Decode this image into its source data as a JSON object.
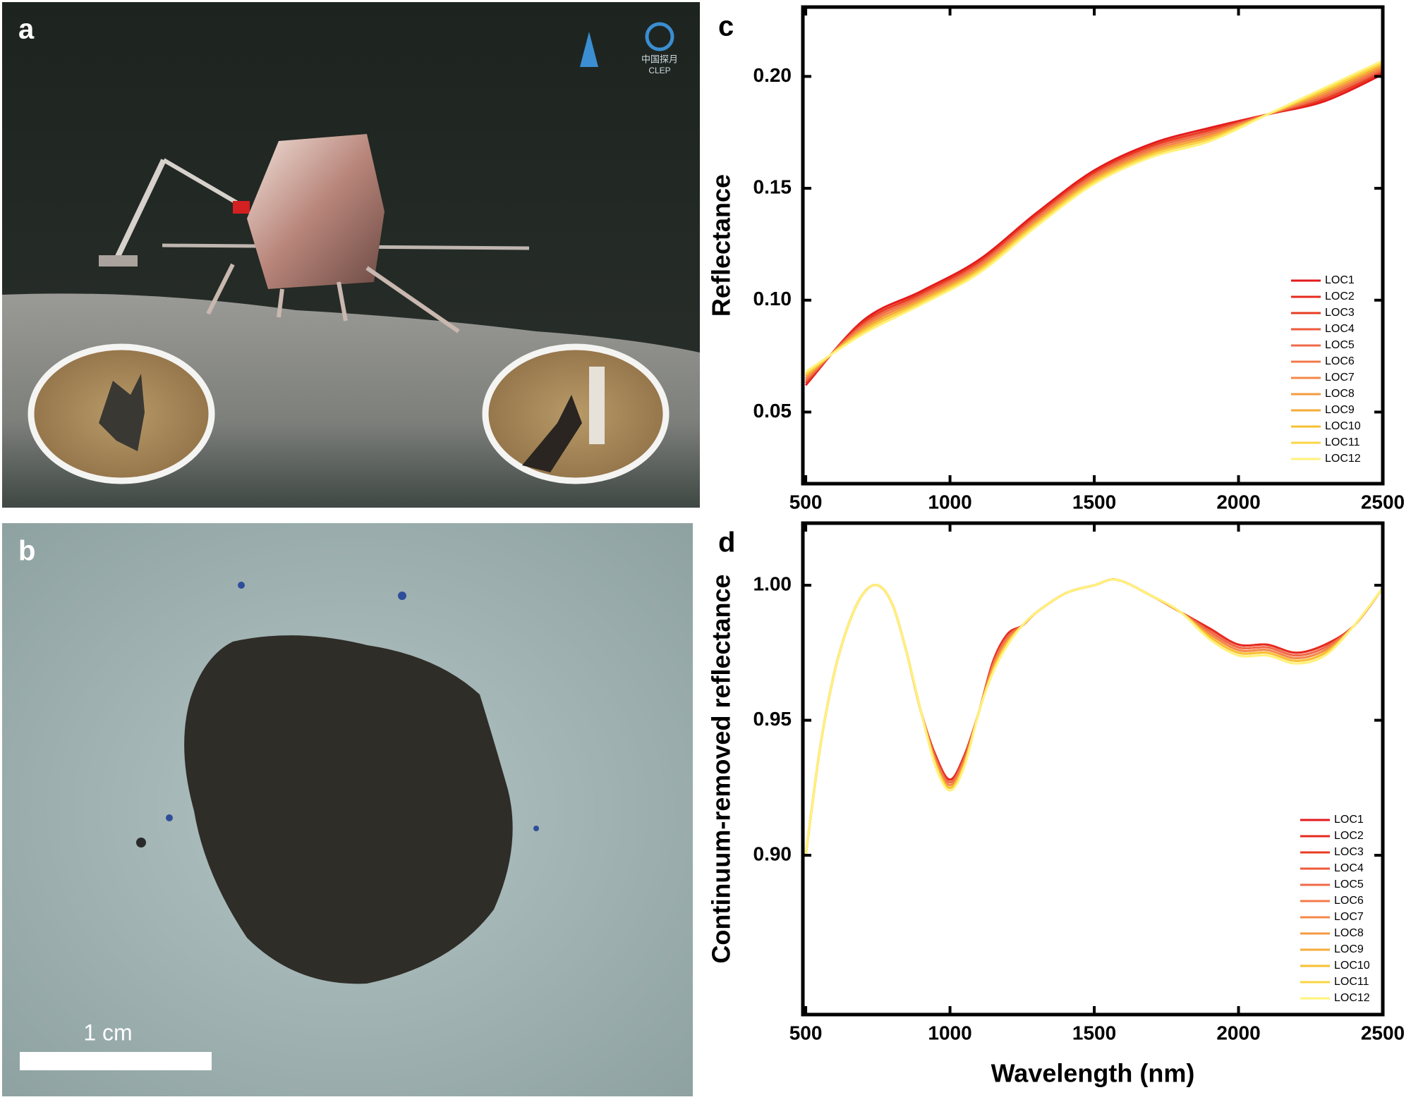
{
  "panel_labels": {
    "a": "a",
    "b": "b"
  },
  "photo_a": {
    "logo_text": [
      "中国探月",
      "CLEP"
    ]
  },
  "photo_b": {
    "scale_bar": "1 cm"
  },
  "chart_data": [
    {
      "type": "line",
      "panel_label": "c",
      "ylabel": "Reflectance",
      "x": [
        500,
        700,
        900,
        1100,
        1300,
        1500,
        1700,
        1900,
        2100,
        2300,
        2500
      ],
      "xlim": [
        490,
        2500
      ],
      "xticks": [
        500,
        1000,
        1500,
        2000,
        2500
      ],
      "ylim": [
        0.018,
        0.231
      ],
      "yticks": [
        0.05,
        {
          "value": 0.1,
          "label": "0.10"
        },
        0.15,
        {
          "value": 0.2,
          "label": "0.20"
        }
      ],
      "legend": "lower right",
      "series": [
        {
          "name": "LOC1",
          "color": "#e31a1c",
          "values": [
            0.062,
            0.091,
            0.104,
            0.118,
            0.139,
            0.158,
            0.17,
            0.177,
            0.183,
            0.189,
            0.201
          ]
        },
        {
          "name": "LOC2",
          "color": "#e62a1e",
          "values": [
            0.063,
            0.09,
            0.103,
            0.117,
            0.138,
            0.157,
            0.169,
            0.176,
            0.183,
            0.19,
            0.202
          ]
        },
        {
          "name": "LOC3",
          "color": "#ea3b22",
          "values": [
            0.063,
            0.09,
            0.103,
            0.117,
            0.138,
            0.157,
            0.169,
            0.176,
            0.183,
            0.19,
            0.202
          ]
        },
        {
          "name": "LOC4",
          "color": "#ee5a3a",
          "values": [
            0.064,
            0.089,
            0.102,
            0.116,
            0.137,
            0.156,
            0.168,
            0.175,
            0.183,
            0.191,
            0.203
          ]
        },
        {
          "name": "LOC5",
          "color": "#f06a48",
          "values": [
            0.064,
            0.089,
            0.102,
            0.116,
            0.137,
            0.156,
            0.168,
            0.175,
            0.183,
            0.191,
            0.203
          ]
        },
        {
          "name": "LOC6",
          "color": "#f27a4a",
          "values": [
            0.065,
            0.088,
            0.101,
            0.115,
            0.136,
            0.155,
            0.167,
            0.174,
            0.183,
            0.192,
            0.204
          ]
        },
        {
          "name": "LOC7",
          "color": "#f4874a",
          "values": [
            0.065,
            0.088,
            0.101,
            0.115,
            0.136,
            0.155,
            0.167,
            0.174,
            0.183,
            0.192,
            0.204
          ]
        },
        {
          "name": "LOC8",
          "color": "#f59a40",
          "values": [
            0.066,
            0.087,
            0.1,
            0.114,
            0.135,
            0.154,
            0.166,
            0.173,
            0.183,
            0.193,
            0.205
          ]
        },
        {
          "name": "LOC9",
          "color": "#f6ac38",
          "values": [
            0.066,
            0.087,
            0.1,
            0.114,
            0.135,
            0.154,
            0.166,
            0.173,
            0.183,
            0.193,
            0.205
          ]
        },
        {
          "name": "LOC10",
          "color": "#f8c030",
          "values": [
            0.067,
            0.086,
            0.099,
            0.113,
            0.134,
            0.153,
            0.165,
            0.172,
            0.183,
            0.194,
            0.206
          ]
        },
        {
          "name": "LOC11",
          "color": "#fbd444",
          "values": [
            0.067,
            0.086,
            0.099,
            0.113,
            0.134,
            0.153,
            0.165,
            0.172,
            0.183,
            0.194,
            0.206
          ]
        },
        {
          "name": "LOC12",
          "color": "#fff27a",
          "values": [
            0.068,
            0.085,
            0.098,
            0.112,
            0.133,
            0.152,
            0.164,
            0.171,
            0.183,
            0.195,
            0.207
          ]
        }
      ]
    },
    {
      "type": "line",
      "panel_label": "d",
      "ylabel": "Continuum-removed reflectance",
      "xlabel": "Wavelength (nm)",
      "x": [
        500,
        550,
        600,
        650,
        700,
        750,
        800,
        850,
        900,
        950,
        1000,
        1050,
        1100,
        1150,
        1200,
        1250,
        1300,
        1400,
        1500,
        1580,
        1700,
        1800,
        1900,
        2000,
        2100,
        2200,
        2300,
        2400,
        2500
      ],
      "xlim": [
        490,
        2500
      ],
      "xticks": [
        500,
        1000,
        1500,
        2000,
        2500
      ],
      "ylim": [
        0.841,
        1.023
      ],
      "yticks": [
        {
          "value": 0.9,
          "label": "0.90"
        },
        0.95,
        {
          "value": 1.0,
          "label": "1.00"
        }
      ],
      "legend": "lower right",
      "series": [
        {
          "name": "LOC1",
          "color": "#e31a1c",
          "values": [
            0.9,
            0.94,
            0.968,
            0.986,
            0.997,
            1.0,
            0.993,
            0.975,
            0.953,
            0.937,
            0.928,
            0.937,
            0.953,
            0.972,
            0.982,
            0.985,
            0.99,
            0.997,
            1.0,
            1.002,
            0.996,
            0.99,
            0.984,
            0.978,
            0.978,
            0.975,
            0.978,
            0.985,
            0.999
          ]
        },
        {
          "name": "LOC2",
          "color": "#e62a1e",
          "values": [
            0.9,
            0.94,
            0.968,
            0.986,
            0.997,
            1.0,
            0.993,
            0.975,
            0.953,
            0.937,
            0.928,
            0.937,
            0.953,
            0.972,
            0.982,
            0.985,
            0.99,
            0.997,
            1.0,
            1.002,
            0.996,
            0.99,
            0.984,
            0.978,
            0.978,
            0.975,
            0.978,
            0.985,
            0.999
          ]
        },
        {
          "name": "LOC3",
          "color": "#ea3b22",
          "values": [
            0.9,
            0.94,
            0.968,
            0.986,
            0.997,
            1.0,
            0.993,
            0.975,
            0.953,
            0.936,
            0.927,
            0.936,
            0.953,
            0.971,
            0.981,
            0.985,
            0.99,
            0.997,
            1.0,
            1.002,
            0.996,
            0.99,
            0.983,
            0.977,
            0.977,
            0.974,
            0.977,
            0.985,
            0.999
          ]
        },
        {
          "name": "LOC4",
          "color": "#ee5a3a",
          "values": [
            0.9,
            0.94,
            0.968,
            0.986,
            0.997,
            1.0,
            0.993,
            0.975,
            0.953,
            0.936,
            0.927,
            0.936,
            0.953,
            0.971,
            0.981,
            0.985,
            0.99,
            0.997,
            1.0,
            1.002,
            0.996,
            0.99,
            0.983,
            0.977,
            0.977,
            0.974,
            0.977,
            0.985,
            0.999
          ]
        },
        {
          "name": "LOC5",
          "color": "#f06a48",
          "values": [
            0.9,
            0.94,
            0.968,
            0.986,
            0.997,
            1.0,
            0.993,
            0.975,
            0.953,
            0.936,
            0.927,
            0.936,
            0.953,
            0.971,
            0.981,
            0.985,
            0.99,
            0.997,
            1.0,
            1.002,
            0.996,
            0.99,
            0.983,
            0.977,
            0.977,
            0.974,
            0.977,
            0.985,
            0.999
          ]
        },
        {
          "name": "LOC6",
          "color": "#f27a4a",
          "values": [
            0.9,
            0.94,
            0.968,
            0.986,
            0.997,
            1.0,
            0.993,
            0.975,
            0.953,
            0.935,
            0.926,
            0.935,
            0.953,
            0.97,
            0.98,
            0.985,
            0.99,
            0.997,
            1.0,
            1.002,
            0.996,
            0.99,
            0.982,
            0.976,
            0.976,
            0.973,
            0.976,
            0.985,
            0.999
          ]
        },
        {
          "name": "LOC7",
          "color": "#f4874a",
          "values": [
            0.9,
            0.94,
            0.968,
            0.986,
            0.997,
            1.0,
            0.993,
            0.975,
            0.953,
            0.935,
            0.926,
            0.935,
            0.953,
            0.97,
            0.98,
            0.985,
            0.99,
            0.997,
            1.0,
            1.002,
            0.996,
            0.99,
            0.982,
            0.976,
            0.976,
            0.973,
            0.976,
            0.985,
            0.999
          ]
        },
        {
          "name": "LOC8",
          "color": "#f59a40",
          "values": [
            0.9,
            0.94,
            0.968,
            0.986,
            0.997,
            1.0,
            0.993,
            0.975,
            0.953,
            0.934,
            0.925,
            0.934,
            0.953,
            0.969,
            0.979,
            0.985,
            0.99,
            0.997,
            1.0,
            1.002,
            0.996,
            0.99,
            0.981,
            0.975,
            0.975,
            0.972,
            0.975,
            0.985,
            0.999
          ]
        },
        {
          "name": "LOC9",
          "color": "#f6ac38",
          "values": [
            0.9,
            0.94,
            0.968,
            0.986,
            0.997,
            1.0,
            0.993,
            0.975,
            0.953,
            0.934,
            0.925,
            0.934,
            0.953,
            0.969,
            0.979,
            0.985,
            0.99,
            0.997,
            1.0,
            1.002,
            0.996,
            0.99,
            0.981,
            0.975,
            0.975,
            0.972,
            0.975,
            0.985,
            0.999
          ]
        },
        {
          "name": "LOC10",
          "color": "#f8c030",
          "values": [
            0.9,
            0.94,
            0.968,
            0.986,
            0.997,
            1.0,
            0.993,
            0.975,
            0.953,
            0.934,
            0.925,
            0.934,
            0.953,
            0.969,
            0.979,
            0.985,
            0.99,
            0.997,
            1.0,
            1.002,
            0.996,
            0.99,
            0.981,
            0.975,
            0.975,
            0.972,
            0.975,
            0.985,
            0.999
          ]
        },
        {
          "name": "LOC11",
          "color": "#fbd444",
          "values": [
            0.9,
            0.94,
            0.968,
            0.986,
            0.997,
            1.0,
            0.993,
            0.975,
            0.953,
            0.933,
            0.924,
            0.933,
            0.953,
            0.968,
            0.978,
            0.985,
            0.99,
            0.997,
            1.0,
            1.002,
            0.996,
            0.99,
            0.98,
            0.974,
            0.974,
            0.971,
            0.974,
            0.985,
            0.999
          ]
        },
        {
          "name": "LOC12",
          "color": "#fff27a",
          "values": [
            0.9,
            0.94,
            0.968,
            0.986,
            0.997,
            1.0,
            0.993,
            0.975,
            0.953,
            0.933,
            0.924,
            0.933,
            0.953,
            0.968,
            0.978,
            0.985,
            0.99,
            0.997,
            1.0,
            1.002,
            0.996,
            0.99,
            0.98,
            0.974,
            0.974,
            0.971,
            0.974,
            0.985,
            0.999
          ]
        }
      ]
    }
  ]
}
